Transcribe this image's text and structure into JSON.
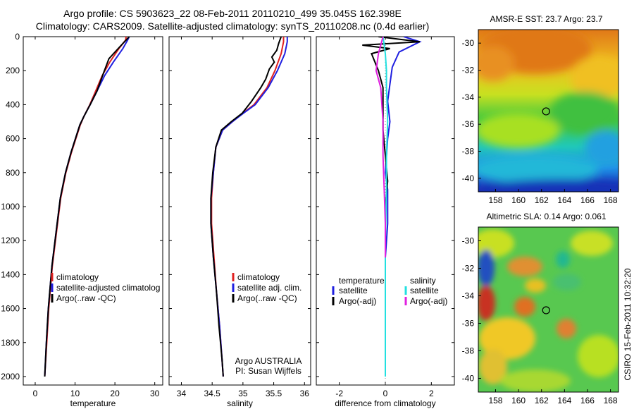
{
  "header": {
    "line1": "Argo profile: CS 5903623_22 08-Feb-2011 20110210_499 35.045S 162.398E",
    "line2": "Climatology: CARS2009. Satellite-adjusted climatology: synTS_20110208.nc (0.4d earlier)"
  },
  "colors": {
    "climatology": "#e02020",
    "satellite": "#1f1fe0",
    "argo": "#000000",
    "sat_salinity": "#22e0e0",
    "argo_adj_salinity": "#e020e0"
  },
  "chart_data": [
    {
      "type": "line",
      "xlabel": "temperature",
      "xlim": [
        -3,
        32
      ],
      "xticks": [
        0,
        10,
        20,
        30
      ],
      "ylim": [
        0,
        2050
      ],
      "yticks": [
        0,
        200,
        400,
        600,
        800,
        1000,
        1200,
        1400,
        1600,
        1800,
        2000
      ],
      "series": [
        {
          "name": "climatology",
          "role": "climatology",
          "x": [
            22.8,
            22.7,
            21.0,
            18.7,
            16.8,
            15.0,
            13.7,
            12.2,
            11.3,
            10.2,
            9.1,
            7.7,
            6.4,
            5.6,
            4.3,
            3.4,
            2.9,
            2.4
          ],
          "y": [
            0,
            20,
            70,
            150,
            230,
            330,
            400,
            470,
            520,
            600,
            680,
            800,
            950,
            1100,
            1350,
            1600,
            1800,
            2000
          ]
        },
        {
          "name": "satellite-adjusted climatology",
          "role": "satellite",
          "x": [
            23.6,
            23.2,
            22.0,
            19.6,
            17.4,
            15.3,
            13.8,
            12.2,
            11.2,
            10.1,
            9.0,
            7.6,
            6.3,
            5.5,
            4.2,
            3.3,
            2.8,
            2.4
          ],
          "y": [
            0,
            20,
            70,
            150,
            230,
            330,
            400,
            470,
            520,
            600,
            680,
            800,
            950,
            1100,
            1350,
            1600,
            1800,
            2000
          ]
        },
        {
          "name": "Argo(..raw -QC)",
          "role": "argo",
          "x": [
            23.6,
            22.8,
            21.2,
            18.5,
            17.2,
            15.5,
            13.8,
            12.2,
            11.2,
            10.1,
            9.0,
            7.6,
            6.3,
            5.5,
            4.2,
            3.3,
            2.8,
            2.4
          ],
          "y": [
            0,
            20,
            60,
            130,
            210,
            320,
            400,
            470,
            520,
            600,
            680,
            800,
            950,
            1100,
            1350,
            1600,
            1800,
            2000
          ]
        }
      ],
      "legend": [
        "climatology",
        "satellite-adjusted climatolog",
        "Argo(..raw -QC)"
      ]
    },
    {
      "type": "line",
      "xlabel": "salinity",
      "xlim": [
        33.8,
        36.1
      ],
      "xticks": [
        34,
        34.5,
        35,
        35.5,
        36
      ],
      "ylim": [
        0,
        2050
      ],
      "series": [
        {
          "name": "climatology",
          "role": "climatology",
          "x": [
            35.66,
            35.66,
            35.62,
            35.52,
            35.39,
            35.18,
            35.0,
            34.83,
            34.67,
            34.56,
            34.52,
            34.49,
            34.49,
            34.53,
            34.57,
            34.62,
            34.66,
            34.68
          ],
          "y": [
            0,
            30,
            100,
            200,
            300,
            400,
            450,
            500,
            550,
            650,
            800,
            950,
            1100,
            1300,
            1500,
            1700,
            1900,
            2000
          ]
        },
        {
          "name": "satellite adj. clim.",
          "role": "satellite",
          "x": [
            35.72,
            35.72,
            35.68,
            35.56,
            35.41,
            35.2,
            35.01,
            34.83,
            34.67,
            34.56,
            34.52,
            34.48,
            34.48,
            34.52,
            34.57,
            34.62,
            34.66,
            34.68
          ],
          "y": [
            0,
            30,
            100,
            200,
            300,
            400,
            450,
            500,
            550,
            650,
            800,
            950,
            1100,
            1300,
            1500,
            1700,
            1900,
            2000
          ]
        },
        {
          "name": "Argo(..raw -QC)",
          "role": "argo",
          "x": [
            35.62,
            35.58,
            35.55,
            35.47,
            35.51,
            35.43,
            35.37,
            35.29,
            35.14,
            34.99,
            34.81,
            34.65,
            34.56,
            34.51,
            34.48,
            34.48,
            34.52,
            34.57,
            34.61,
            34.66,
            34.68
          ],
          "y": [
            0,
            40,
            80,
            120,
            150,
            190,
            250,
            300,
            380,
            450,
            500,
            550,
            650,
            800,
            950,
            1100,
            1300,
            1500,
            1700,
            1900,
            2000
          ]
        }
      ],
      "legend": [
        "climatology",
        "satellite adj. clim.",
        "Argo(..raw -QC)"
      ],
      "annotation": [
        "Argo AUSTRALIA",
        "PI: Susan Wijffels"
      ]
    },
    {
      "type": "line",
      "xlabel": "difference from climatology",
      "xlim": [
        -3,
        3
      ],
      "xticks": [
        -2,
        0,
        2
      ],
      "ylim": [
        0,
        2050
      ],
      "series": [
        {
          "name": "temperature satellite",
          "role": "satellite",
          "x": [
            0.8,
            1.5,
            0.6,
            0.3,
            0.2,
            0.1,
            0.2,
            0.1,
            0.05,
            0.0,
            0.1,
            0.1,
            0.0,
            0.0,
            0.0,
            0.0
          ],
          "y": [
            0,
            30,
            90,
            180,
            280,
            380,
            500,
            600,
            700,
            800,
            900,
            1100,
            1300,
            1500,
            1700,
            2000
          ]
        },
        {
          "name": "temperature Argo(-adj)",
          "role": "argo",
          "x": [
            -0.3,
            1.5,
            -1.0,
            0.2,
            -0.6,
            -0.3,
            -0.1,
            -0.1,
            -0.1,
            0.0,
            0.1,
            0.0,
            0.0,
            0.0,
            0.0
          ],
          "y": [
            0,
            30,
            50,
            70,
            100,
            200,
            300,
            400,
            550,
            700,
            850,
            1000,
            1200,
            1500,
            2000
          ]
        },
        {
          "name": "salinity satellite",
          "role": "sat_salinity",
          "x": [
            -0.1,
            -0.05,
            0.0,
            0.05,
            0.05,
            0.1,
            0.05,
            0.05,
            0.0,
            0.0,
            0.0,
            0.0
          ],
          "y": [
            0,
            50,
            100,
            200,
            300,
            500,
            700,
            900,
            1200,
            1500,
            1800,
            2000
          ]
        },
        {
          "name": "salinity Argo(-adj)",
          "role": "argo_adj_salinity",
          "x": [
            -0.1,
            -0.3,
            -0.4,
            -0.2,
            -0.1,
            -0.1,
            -0.05,
            0.0,
            0.0
          ],
          "y": [
            0,
            100,
            200,
            300,
            500,
            700,
            900,
            1100,
            1300
          ]
        }
      ],
      "legend_left_title": "temperature",
      "legend_left": [
        "satellite",
        "Argo(-adj)"
      ],
      "legend_right_title": "salinity",
      "legend_right": [
        "satellite",
        "Argo(-adj)"
      ]
    },
    {
      "type": "heatmap",
      "title": "AMSR-E SST: 23.7 Argo: 23.7",
      "xlim": [
        156.5,
        168.7
      ],
      "xticks": [
        158,
        160,
        162,
        164,
        166,
        168
      ],
      "ylim": [
        -41,
        -29
      ],
      "yticks": [
        -30,
        -32,
        -34,
        -36,
        -38,
        -40
      ],
      "marker": {
        "lon": 162.4,
        "lat": -35.05
      }
    },
    {
      "type": "heatmap",
      "title": "Altimetric SLA: 0.14 Argo: 0.061",
      "xlim": [
        156.5,
        168.7
      ],
      "xticks": [
        158,
        160,
        162,
        164,
        166,
        168
      ],
      "ylim": [
        -41,
        -29
      ],
      "yticks": [
        -30,
        -32,
        -34,
        -36,
        -38,
        -40
      ],
      "marker": {
        "lon": 162.4,
        "lat": -35.05
      }
    }
  ],
  "side_label": "CSIRO 15-Feb-2011 10:32:20"
}
